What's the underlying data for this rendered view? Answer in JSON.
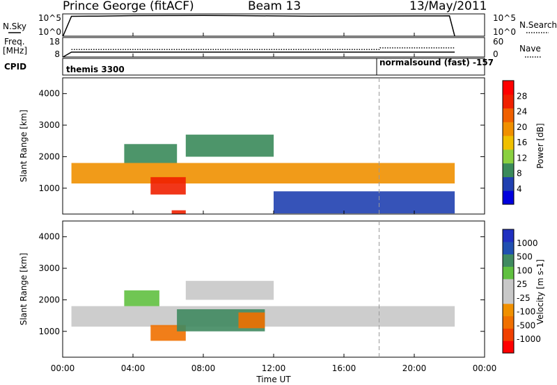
{
  "header": {
    "station": "Prince George (fitACF)",
    "beam": "Beam 13",
    "date": "13/May/2011"
  },
  "noise_panel": {
    "left_label": "N.Sky",
    "right_label": "N.Search",
    "left_ticks": [
      "10^5",
      "10^0"
    ],
    "right_ticks": [
      "10^5",
      "10^0"
    ]
  },
  "freq_panel": {
    "left_label_1": "Freq.",
    "left_label_2": "[MHz]",
    "right_label": "Nave",
    "left_ticks": [
      "18",
      "8"
    ],
    "right_ticks": [
      "60",
      "0"
    ]
  },
  "cpid_panel": {
    "label": "CPID",
    "mode_1": "themis 3300",
    "mode_2": "normalsound (fast) -157"
  },
  "time_axis": {
    "label": "Time UT",
    "ticks": [
      "00:00",
      "04:00",
      "08:00",
      "12:00",
      "16:00",
      "20:00",
      "00:00"
    ]
  },
  "power_colorbar": {
    "label": "Power [dB]",
    "colors": [
      "#0000dd",
      "#2040b0",
      "#3a8a5a",
      "#8ad040",
      "#f0c000",
      "#f09000",
      "#f06000",
      "#f02000",
      "#ff0000"
    ],
    "ticks": [
      "4",
      "8",
      "12",
      "16",
      "20",
      "24",
      "28"
    ]
  },
  "velocity_colorbar": {
    "label": "Velocity [m s-1]",
    "colors": [
      "#ff0000",
      "#f04000",
      "#f07000",
      "#f09000",
      "#c8c8c8",
      "#c8c8c8",
      "#60c040",
      "#408a60",
      "#2050b0",
      "#2030c0"
    ],
    "ticks": [
      "-1000",
      "-500",
      "-100",
      "-25",
      "25",
      "100",
      "500",
      "1000"
    ]
  },
  "chart_data": [
    {
      "type": "line",
      "title": "",
      "xlabel": "",
      "ylabel": "N.Sky",
      "xlim": [
        0,
        24
      ],
      "yscale": "log",
      "ylim": [
        1,
        100000
      ],
      "series": [
        {
          "name": "N.Sky",
          "x": [
            0.02,
            0.5,
            2,
            4,
            6,
            8,
            10,
            12,
            14,
            16,
            18,
            20,
            22,
            22.3
          ],
          "y": [
            1,
            28000,
            32000,
            40000,
            42000,
            45000,
            40000,
            35000,
            32000,
            33000,
            34000,
            35000,
            36000,
            1
          ]
        }
      ]
    },
    {
      "type": "line",
      "title": "",
      "xlabel": "",
      "ylabel": "Freq. [MHz]",
      "xlim": [
        0,
        24
      ],
      "ylim": [
        8,
        18
      ],
      "series": [
        {
          "name": "Freq.",
          "x": [
            0.02,
            0.5,
            22.3
          ],
          "y": [
            8,
            10.5,
            10.5
          ]
        },
        {
          "name": "Nave",
          "x": [
            0.5,
            18,
            18.05,
            22.3
          ],
          "y": [
            23,
            23,
            28,
            28
          ]
        }
      ]
    },
    {
      "type": "heatmap",
      "title": "",
      "xlabel": "Time UT",
      "ylabel": "Slant Range [km]",
      "xlim": [
        0,
        24
      ],
      "ylim": [
        180,
        4500
      ],
      "value_label": "Power [dB]",
      "marker_line_x": 18,
      "regions": [
        {
          "t": [
            0.5,
            22.3
          ],
          "r": [
            1150,
            1800
          ],
          "value": 20
        },
        {
          "t": [
            5.0,
            7.0
          ],
          "r": [
            800,
            1350
          ],
          "value": 28
        },
        {
          "t": [
            6.2,
            7.0
          ],
          "r": [
            180,
            300
          ],
          "value": 28
        },
        {
          "t": [
            7.0,
            12.0
          ],
          "r": [
            2000,
            2700
          ],
          "value": 10
        },
        {
          "t": [
            3.5,
            6.5
          ],
          "r": [
            1800,
            2400
          ],
          "value": 10
        },
        {
          "t": [
            12.0,
            22.3
          ],
          "r": [
            200,
            900
          ],
          "value": 6
        }
      ]
    },
    {
      "type": "heatmap",
      "title": "",
      "xlabel": "Time UT",
      "ylabel": "Slant Range [km]",
      "xlim": [
        0,
        24
      ],
      "ylim": [
        180,
        4500
      ],
      "value_label": "Velocity [m s-1]",
      "marker_line_x": 18,
      "regions": [
        {
          "t": [
            0.5,
            22.3
          ],
          "r": [
            1150,
            1800
          ],
          "value": 0
        },
        {
          "t": [
            5.0,
            7.0
          ],
          "r": [
            700,
            1200
          ],
          "value": -300
        },
        {
          "t": [
            6.5,
            11.5
          ],
          "r": [
            1000,
            1700
          ],
          "value": 500
        },
        {
          "t": [
            10.0,
            11.5
          ],
          "r": [
            1100,
            1600
          ],
          "value": -300
        },
        {
          "t": [
            7.0,
            12.0
          ],
          "r": [
            2000,
            2600
          ],
          "value": 0
        },
        {
          "t": [
            3.5,
            5.5
          ],
          "r": [
            1800,
            2300
          ],
          "value": 100
        }
      ]
    }
  ]
}
